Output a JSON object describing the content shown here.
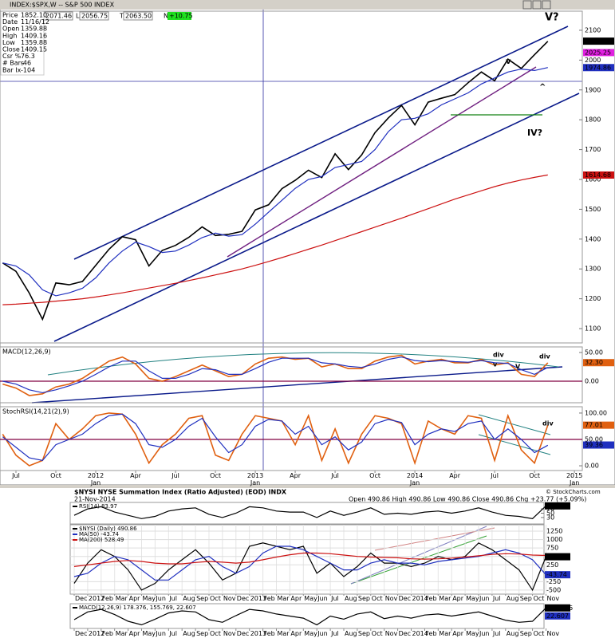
{
  "chart_data": [
    {
      "type": "line",
      "title": "INDEX:$SPX,W -- S&P 500 INDEX",
      "readout": [
        "2071.46",
        "L",
        "2056.75",
        "T",
        "2063.50",
        "N",
        "+10.75"
      ],
      "info": [
        [
          "Price",
          "1852.10"
        ],
        [
          "Date",
          "11/16/12"
        ],
        [
          "Open",
          "1359.88"
        ],
        [
          "High",
          "1409.16"
        ],
        [
          "Low",
          "1359.88"
        ],
        [
          "Close",
          "1409.15"
        ],
        [
          "Csr %",
          "76.3"
        ],
        [
          "# Bars",
          "-46"
        ],
        [
          "Bar Ix",
          "-104"
        ]
      ],
      "categories": [
        null,
        "Jul",
        null,
        null,
        "Oct",
        null,
        null,
        "2012\nJan",
        null,
        null,
        "Apr",
        null,
        null,
        "Jul",
        null,
        null,
        "Oct",
        null,
        null,
        "2013\nJan",
        null,
        null,
        "Apr",
        null,
        null,
        "Jul",
        null,
        null,
        "Oct",
        null,
        null,
        "2014\nJan",
        null,
        null,
        "Apr",
        null,
        null,
        "Jul",
        null,
        null,
        "Oct",
        null,
        null,
        "2015\nJan"
      ],
      "annotations": [
        "V?",
        "IV?",
        "v",
        "^"
      ],
      "panels": [
        {
          "ylim": [
            1052,
            2164
          ],
          "yticks": [
            1100,
            1200,
            1300,
            1400,
            1500,
            1600,
            1700,
            1800,
            1900,
            2000,
            2100
          ],
          "series": [
            {
              "color": "#000000",
              "values": [
                1320,
                1292,
                1219,
                1131,
                1253,
                1247,
                1258,
                1312,
                1366,
                1408,
                1398,
                1310,
                1362,
                1379,
                1406,
                1441,
                1412,
                1416,
                1426,
                1498,
                1515,
                1569,
                1597,
                1631,
                1606,
                1686,
                1633,
                1682,
                1757,
                1806,
                1848,
                1783,
                1859,
                1872,
                1884,
                1924,
                1960,
                1931,
                2003,
                1972,
                2018,
                2063,
                null,
                null
              ]
            },
            {
              "color": "#1f2fbf",
              "values": [
                1320,
                1310,
                1280,
                1230,
                1210,
                1220,
                1235,
                1270,
                1320,
                1360,
                1390,
                1375,
                1355,
                1360,
                1380,
                1405,
                1420,
                1410,
                1415,
                1450,
                1490,
                1530,
                1570,
                1600,
                1610,
                1640,
                1650,
                1660,
                1700,
                1760,
                1800,
                1805,
                1820,
                1850,
                1870,
                1890,
                1920,
                1940,
                1960,
                1970,
                1965,
                1975,
                null,
                null
              ]
            },
            {
              "color": "#cc1111",
              "values": [
                1180,
                1182,
                1185,
                1188,
                1192,
                1196,
                1200,
                1206,
                1213,
                1220,
                1228,
                1236,
                1244,
                1252,
                1261,
                1270,
                1280,
                1290,
                1300,
                1312,
                1325,
                1338,
                1352,
                1366,
                1380,
                1395,
                1410,
                1425,
                1440,
                1455,
                1470,
                1486,
                1502,
                1518,
                1534,
                1548,
                1562,
                1576,
                1588,
                1598,
                1607,
                1615,
                null,
                null
              ]
            }
          ],
          "tags": [
            {
              "value": 2063.5,
              "label": "2063.50",
              "color": "#000000"
            },
            {
              "value": 2025.25,
              "label": "2025.25",
              "color": "#e020e0"
            },
            {
              "value": 1974.86,
              "label": "1974.86",
              "color": "#1f2fbf"
            },
            {
              "value": 1614.68,
              "label": "1614.68",
              "color": "#cc1111"
            }
          ]
        },
        {
          "title": "MACD(12,26,9)",
          "ylim": [
            -37.5,
            59.7
          ],
          "yticks": [
            {
              "value": 0,
              "label": "0.00"
            },
            {
              "value": 50,
              "label": "50.00"
            }
          ],
          "annotations": [
            "div",
            "v",
            "V",
            "div"
          ],
          "ref_lines": [
            {
              "value": 0,
              "color": "#800040"
            }
          ],
          "series": [
            {
              "color": "#e06010",
              "values": [
                -5,
                -12,
                -25,
                -22,
                -10,
                -5,
                5,
                20,
                35,
                42,
                30,
                5,
                0,
                8,
                18,
                28,
                18,
                8,
                12,
                30,
                40,
                42,
                38,
                40,
                25,
                30,
                22,
                22,
                35,
                42,
                45,
                30,
                35,
                38,
                32,
                32,
                38,
                28,
                32,
                12,
                8,
                32,
                null,
                null
              ]
            },
            {
              "color": "#1f2fbf",
              "values": [
                0,
                -5,
                -15,
                -20,
                -15,
                -8,
                0,
                12,
                25,
                35,
                35,
                18,
                5,
                5,
                12,
                22,
                20,
                12,
                12,
                22,
                33,
                40,
                40,
                40,
                32,
                30,
                26,
                24,
                30,
                38,
                42,
                36,
                34,
                36,
                34,
                33,
                36,
                32,
                31,
                20,
                12,
                24,
                null,
                null
              ]
            }
          ],
          "tags": [
            {
              "value": 32.3,
              "label": "32.30",
              "color": "#e06010"
            }
          ]
        },
        {
          "title": "StochRSI(14,21(2),9)",
          "ylim": [
            -9,
            112
          ],
          "yticks": [
            {
              "value": 0,
              "label": "0.00"
            },
            {
              "value": 50,
              "label": "50.00"
            },
            {
              "value": 100,
              "label": "100.00"
            }
          ],
          "annotations": [
            "div"
          ],
          "ref_lines": [
            {
              "value": 50,
              "color": "#800040"
            }
          ],
          "series": [
            {
              "color": "#e06010",
              "values": [
                60,
                20,
                0,
                10,
                80,
                50,
                70,
                95,
                100,
                98,
                60,
                5,
                40,
                60,
                90,
                95,
                20,
                10,
                60,
                95,
                90,
                85,
                40,
                95,
                10,
                70,
                5,
                60,
                95,
                90,
                80,
                5,
                85,
                70,
                60,
                95,
                90,
                10,
                95,
                30,
                5,
                77,
                null,
                null
              ]
            },
            {
              "color": "#1f2fbf",
              "values": [
                55,
                35,
                15,
                10,
                40,
                50,
                60,
                80,
                95,
                98,
                80,
                40,
                35,
                50,
                75,
                90,
                55,
                25,
                40,
                75,
                88,
                85,
                60,
                75,
                40,
                55,
                30,
                45,
                80,
                88,
                82,
                40,
                60,
                70,
                65,
                80,
                85,
                50,
                70,
                50,
                25,
                39,
                null,
                null
              ]
            }
          ],
          "tags": [
            {
              "value": 77.01,
              "label": "77.01",
              "color": "#e06010"
            },
            {
              "value": 39.36,
              "label": "39.36",
              "color": "#1f2fbf"
            }
          ]
        }
      ]
    },
    {
      "type": "line",
      "title": "$NYSI NYSE Summation Index (Ratio Adjusted) (EOD) INDX",
      "date": "21-Nov-2014",
      "quote": "Open 490.86  High 490.86  Low 490.86  Close 490.86  Chg +23.77 (+5.09%)",
      "credit": "© StockCharts.com",
      "categories": [
        "Dec",
        "2012",
        "Feb",
        "Mar",
        "Apr",
        "May",
        "Jun",
        "Jul",
        "Aug",
        "Sep",
        "Oct",
        "Nov",
        "Dec",
        "2013",
        "Feb",
        "Mar",
        "Apr",
        "May",
        "Jun",
        "Jul",
        "Aug",
        "Sep",
        "Oct",
        "Nov",
        "Dec",
        "2014",
        "Feb",
        "Mar",
        "Apr",
        "May",
        "Jun",
        "Jul",
        "Aug",
        "Sep",
        "Oct",
        "Nov"
      ],
      "panels": [
        {
          "ylim": [
            0,
            100
          ],
          "yticks": [
            30,
            50,
            70
          ],
          "series": [
            {
              "name": "RSI(14) 83.97",
              "color": "#000000",
              "values": [
                40,
                70,
                80,
                55,
                40,
                25,
                35,
                60,
                70,
                75,
                45,
                30,
                50,
                80,
                75,
                60,
                55,
                55,
                30,
                60,
                40,
                55,
                75,
                45,
                50,
                45,
                55,
                60,
                50,
                60,
                75,
                55,
                40,
                35,
                25,
                83.97
              ]
            }
          ],
          "tags": [
            {
              "value": 83.97,
              "label": "83.97",
              "color": "#000000"
            }
          ]
        },
        {
          "ylim": [
            -620,
            1440
          ],
          "yticks": [
            -500,
            -250,
            250,
            500,
            750,
            1000,
            1250
          ],
          "grid": true,
          "series": [
            {
              "name": "$NYSI (Daily) 490.86",
              "color": "#000000",
              "values": [
                -300,
                300,
                700,
                500,
                100,
                -500,
                -300,
                100,
                400,
                700,
                300,
                -200,
                0,
                800,
                900,
                800,
                700,
                800,
                0,
                300,
                -100,
                200,
                600,
                300,
                300,
                200,
                300,
                500,
                400,
                500,
                900,
                700,
                400,
                100,
                -500,
                490.86
              ]
            },
            {
              "name": "MA(50) -43.74",
              "color": "#1f2fbf",
              "values": [
                -100,
                0,
                300,
                500,
                400,
                100,
                -200,
                -200,
                100,
                400,
                500,
                200,
                0,
                200,
                600,
                800,
                800,
                700,
                500,
                300,
                100,
                100,
                300,
                400,
                300,
                300,
                250,
                350,
                400,
                450,
                500,
                600,
                700,
                600,
                400,
                -43.74
              ]
            },
            {
              "name": "MA(200) 528.49",
              "color": "#cc1111",
              "values": [
                200,
                250,
                300,
                350,
                380,
                350,
                300,
                280,
                280,
                320,
                350,
                330,
                300,
                330,
                400,
                480,
                550,
                600,
                600,
                580,
                540,
                500,
                480,
                470,
                460,
                430,
                420,
                430,
                450,
                480,
                520,
                560,
                580,
                570,
                540,
                528.49
              ]
            }
          ],
          "tags": [
            {
              "value": 490.86,
              "label": "490.86",
              "color": "#000000"
            },
            {
              "value": -43.74,
              "label": "-43.74",
              "color": "#1f2fbf"
            }
          ]
        },
        {
          "ylim": [
            -220,
            260
          ],
          "series": [
            {
              "name": "MACD(12,26,9) 178.376, 155.769, 22.607",
              "color": "#000000",
              "values": [
                -50,
                100,
                150,
                50,
                -80,
                -150,
                -40,
                80,
                120,
                100,
                -50,
                -100,
                30,
                150,
                120,
                60,
                20,
                -20,
                -150,
                20,
                -40,
                60,
                100,
                -30,
                20,
                -20,
                40,
                60,
                20,
                60,
                100,
                20,
                -60,
                -100,
                -80,
                178.376
              ]
            }
          ],
          "tags": [
            {
              "value": 178.376,
              "label": "178.376",
              "color": "#000000"
            },
            {
              "value": 22.607,
              "label": "22.607",
              "color": "#1f2fbf"
            }
          ]
        }
      ]
    }
  ]
}
